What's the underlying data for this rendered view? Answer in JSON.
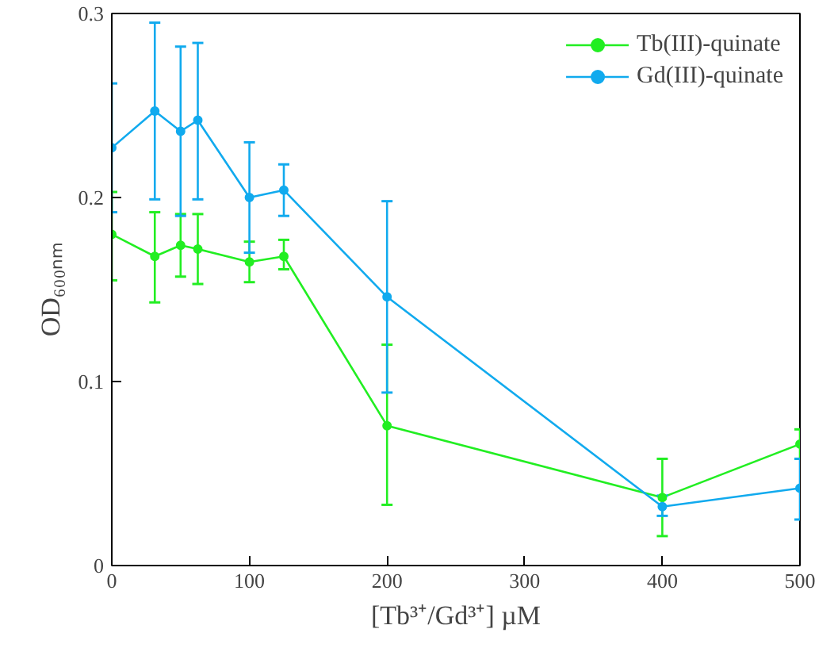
{
  "chart_data": {
    "type": "line",
    "xlabel": "[Tb³⁺/Gd³⁺] µM",
    "ylabel": "OD₆₀₀ₙₘ",
    "x": [
      0,
      31.25,
      50,
      62.5,
      100,
      125,
      200,
      400,
      500
    ],
    "series": [
      {
        "name": "Tb(III)-quinate",
        "color": "#22ee22",
        "values": [
          0.18,
          0.168,
          0.174,
          0.172,
          0.165,
          0.168,
          0.076,
          0.037,
          0.066
        ],
        "errors": [
          [
            0.155,
            0.203
          ],
          [
            0.143,
            0.192
          ],
          [
            0.157,
            0.191
          ],
          [
            0.153,
            0.191
          ],
          [
            0.154,
            0.176
          ],
          [
            0.161,
            0.177
          ],
          [
            0.033,
            0.12
          ],
          [
            0.016,
            0.058
          ],
          [
            0.058,
            0.074
          ]
        ]
      },
      {
        "name": "Gd(III)-quinate",
        "color": "#11aaee",
        "values": [
          0.227,
          0.247,
          0.236,
          0.242,
          0.2,
          0.204,
          0.146,
          0.032,
          0.042
        ],
        "errors": [
          [
            0.192,
            0.262
          ],
          [
            0.199,
            0.295
          ],
          [
            0.19,
            0.282
          ],
          [
            0.199,
            0.284
          ],
          [
            0.17,
            0.23
          ],
          [
            0.19,
            0.218
          ],
          [
            0.094,
            0.198
          ],
          [
            0.027,
            0.038
          ],
          [
            0.025,
            0.058
          ]
        ]
      }
    ],
    "xlim": [
      0,
      500
    ],
    "ylim": [
      0,
      0.3
    ],
    "xticks": [
      0,
      100,
      200,
      300,
      400,
      500
    ],
    "yticks": [
      0,
      0.1,
      0.2,
      0.3
    ],
    "marker": "circle",
    "line_style": "solid",
    "grid": false,
    "legend": "top right"
  }
}
